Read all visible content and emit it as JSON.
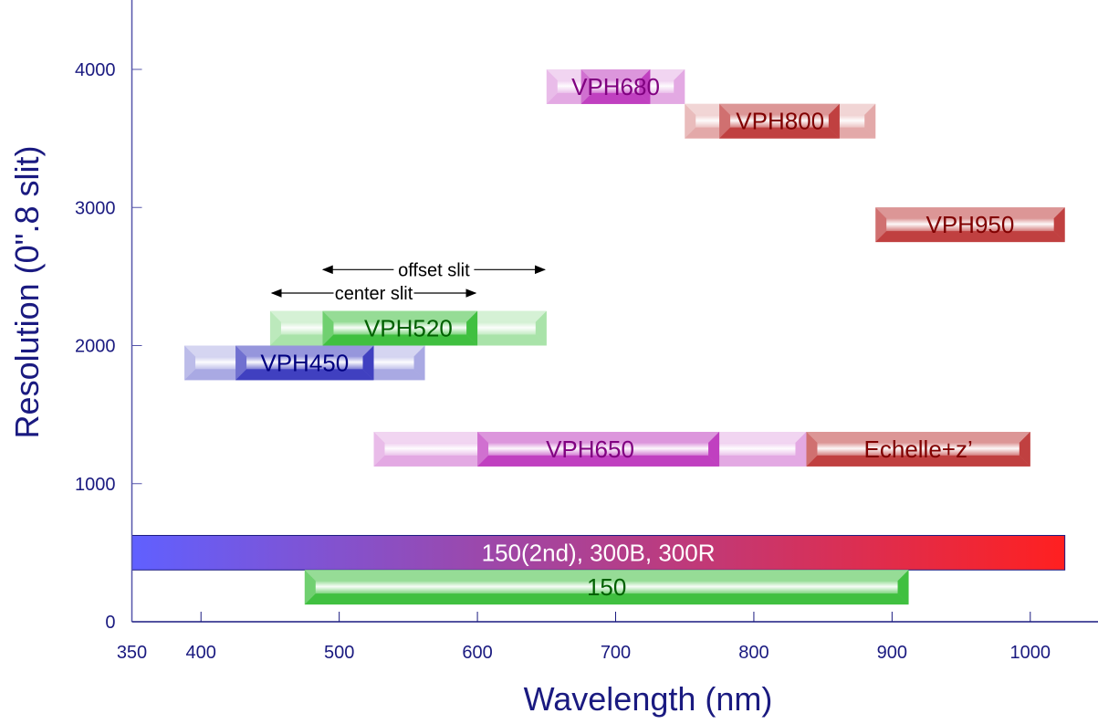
{
  "chart_data": {
    "type": "bar",
    "subtype": "floating-range-bars",
    "title": "",
    "xlabel": "Wavelength (nm)",
    "ylabel": "Resolution (0\".8 slit)",
    "xlim": [
      350,
      1050
    ],
    "ylim": [
      0,
      4500
    ],
    "xticks": [
      350,
      400,
      500,
      600,
      700,
      800,
      900,
      1000
    ],
    "yticks": [
      0,
      1000,
      2000,
      3000,
      4000
    ],
    "grid": false,
    "legend": "none",
    "series": [
      {
        "name": "VPH680",
        "x_full": [
          650,
          750
        ],
        "x_core": [
          675,
          725
        ],
        "y": [
          3750,
          4000
        ],
        "color": "#c040c0",
        "text_color": "#800080"
      },
      {
        "name": "VPH800",
        "x_full": [
          750,
          888
        ],
        "x_core": [
          775,
          862
        ],
        "y": [
          3500,
          3750
        ],
        "color": "#c04040",
        "text_color": "#800000"
      },
      {
        "name": "VPH950",
        "x_full": [
          888,
          1025
        ],
        "x_core": [
          888,
          1025
        ],
        "y": [
          2750,
          3000
        ],
        "color": "#c04040",
        "text_color": "#800000"
      },
      {
        "name": "VPH520",
        "x_full": [
          450,
          650
        ],
        "x_core": [
          488,
          600
        ],
        "y": [
          2000,
          2250
        ],
        "color": "#40c040",
        "text_color": "#006000"
      },
      {
        "name": "VPH450",
        "x_full": [
          388,
          562
        ],
        "x_core": [
          425,
          525
        ],
        "y": [
          1750,
          2000
        ],
        "color": "#4040c0",
        "text_color": "#000080"
      },
      {
        "name": "VPH650",
        "x_full": [
          525,
          838
        ],
        "x_core": [
          600,
          775
        ],
        "y": [
          1125,
          1375
        ],
        "color": "#c040c0",
        "text_color": "#800080"
      },
      {
        "name": "Echelle+z’",
        "x_full": [
          838,
          1000
        ],
        "x_core": [
          838,
          1000
        ],
        "y": [
          1125,
          1375
        ],
        "color": "#c04040",
        "text_color": "#800000"
      },
      {
        "name": "150(2nd), 300B, 300R",
        "x_full": [
          350,
          1025
        ],
        "x_core": [
          350,
          1025
        ],
        "y": [
          375,
          625
        ],
        "gradient": [
          "#6060ff",
          "#ff2020"
        ],
        "text_color": "#ffffff"
      },
      {
        "name": "150",
        "x_full": [
          475,
          912
        ],
        "x_core": [
          475,
          912
        ],
        "y": [
          125,
          375
        ],
        "color": "#40c040",
        "text_color": "#006000"
      }
    ],
    "annotations": [
      {
        "text": "offset slit",
        "x_range": [
          487,
          650
        ],
        "y": 2550
      },
      {
        "text": "center slit",
        "x_range": [
          450,
          600
        ],
        "y": 2380
      }
    ]
  }
}
